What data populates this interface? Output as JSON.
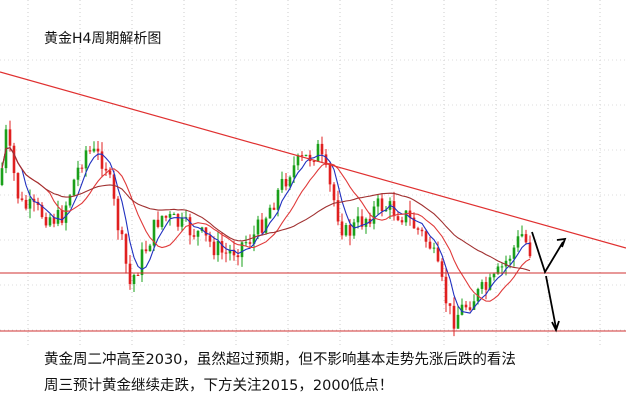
{
  "header": {
    "title": "黄金H4周期解析图"
  },
  "annotations": [
    "黄金周二冲高至2030，虽然超过预期，但不影响基本走势先涨后跌的看法",
    "周三预计黄金继续走跌，下方关注2015，2000低点！"
  ]
}
